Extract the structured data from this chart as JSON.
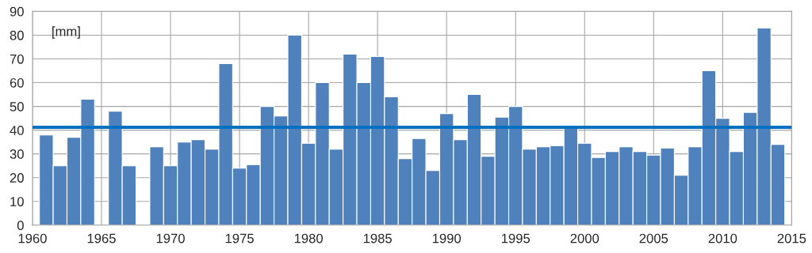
{
  "chart_data": {
    "type": "bar",
    "x": [
      1961,
      1962,
      1963,
      1964,
      1965,
      1966,
      1967,
      1968,
      1969,
      1970,
      1971,
      1972,
      1973,
      1974,
      1975,
      1976,
      1977,
      1978,
      1979,
      1980,
      1981,
      1982,
      1983,
      1984,
      1985,
      1986,
      1987,
      1988,
      1989,
      1990,
      1991,
      1992,
      1993,
      1994,
      1995,
      1996,
      1997,
      1998,
      1999,
      2000,
      2001,
      2002,
      2003,
      2004,
      2005,
      2006,
      2007,
      2008,
      2009,
      2010,
      2011,
      2012,
      2013,
      2014
    ],
    "values": [
      38,
      25,
      37,
      53,
      null,
      48,
      25,
      null,
      33,
      25,
      35,
      36,
      32,
      68,
      24,
      25.5,
      50,
      46,
      80,
      34.5,
      60,
      32,
      72,
      60,
      71,
      54,
      28,
      36.5,
      23,
      47,
      36,
      55,
      29,
      45.5,
      50,
      32,
      33,
      33.5,
      41.5,
      34.5,
      28.5,
      31,
      33,
      31,
      29.5,
      32.5,
      21,
      33,
      65,
      45,
      31,
      47.5,
      83,
      34
    ],
    "color": "#4f81bd",
    "xlim": [
      1960,
      2015
    ],
    "xticks": [
      1960,
      1965,
      1970,
      1975,
      1980,
      1985,
      1990,
      1995,
      2000,
      2005,
      2010,
      2015
    ],
    "ylim": [
      0,
      90
    ],
    "yticks": [
      0,
      10,
      20,
      30,
      40,
      50,
      60,
      70,
      80,
      90
    ],
    "grid": true,
    "annotations": [
      "[mm]"
    ],
    "ref_lines": [
      {
        "axis": "y",
        "value": 41.2,
        "color": "#0070c0",
        "line_style": "solid"
      }
    ]
  }
}
